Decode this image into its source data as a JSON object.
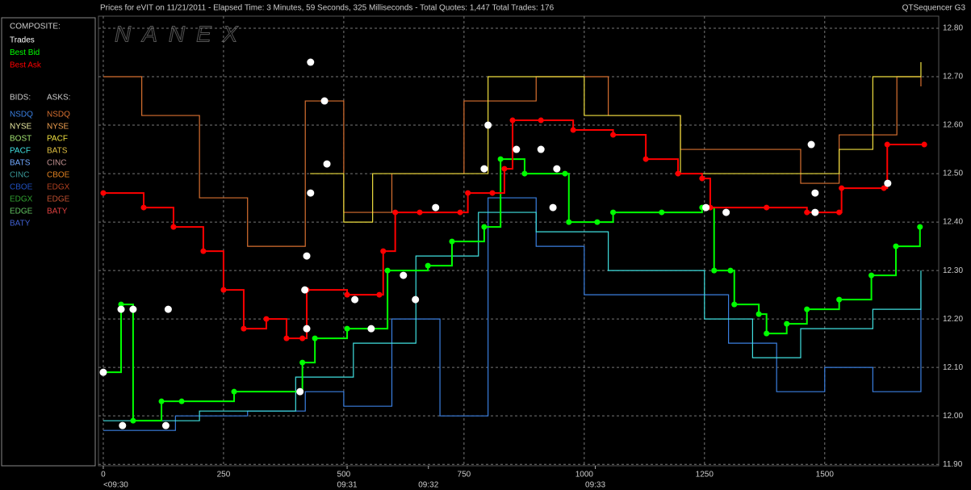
{
  "header": {
    "title": "Prices for  eVIT  on  11/21/2011  -  Elapsed Time: 3 Minutes, 59 Seconds, 325 Milliseconds  -  Total Quotes: 1,447  Total Trades: 176",
    "app": "QTSequencer G3"
  },
  "chart_data": {
    "type": "line",
    "watermark": "NANEX",
    "grid": true,
    "composite_label": "COMPOSITE:",
    "bids_label": "BIDS:",
    "asks_label": "ASKS:",
    "xlim": [
      -10,
      1737
    ],
    "ylim": [
      11.897,
      12.825
    ],
    "xticks": [
      0,
      250,
      500,
      750,
      1000,
      1250,
      1500
    ],
    "x2ticks": [
      {
        "value": 0,
        "label": "<09:30"
      },
      {
        "value": 507,
        "label": "09:31"
      },
      {
        "value": 676,
        "label": "09:32"
      },
      {
        "value": 1023,
        "label": "09:33"
      }
    ],
    "yticks": [
      {
        "value": 11.9,
        "label": "11.90"
      },
      {
        "value": 12.0,
        "label": "12.00"
      },
      {
        "value": 12.1,
        "label": "12.10"
      },
      {
        "value": 12.2,
        "label": "12.20"
      },
      {
        "value": 12.3,
        "label": "12.30"
      },
      {
        "value": 12.4,
        "label": "12.40"
      },
      {
        "value": 12.5,
        "label": "12.50"
      },
      {
        "value": 12.6,
        "label": "12.60"
      },
      {
        "value": 12.7,
        "label": "12.70"
      },
      {
        "value": 12.8,
        "label": "12.80"
      }
    ],
    "series": [
      {
        "name": "Trades",
        "color": "#ffffff",
        "type": "scatter",
        "x": [
          0,
          37,
          62,
          135,
          40,
          130,
          431,
          460,
          465,
          431,
          423,
          419,
          423,
          409,
          523,
          557,
          624,
          649,
          691,
          800,
          792,
          859,
          910,
          943,
          935,
          1253,
          1295,
          1472,
          1480,
          1480,
          1631
        ],
        "values": [
          12.09,
          12.22,
          12.22,
          12.22,
          11.98,
          11.98,
          12.73,
          12.65,
          12.52,
          12.46,
          12.33,
          12.26,
          12.18,
          12.05,
          12.24,
          12.18,
          12.29,
          12.24,
          12.43,
          12.6,
          12.51,
          12.55,
          12.55,
          12.51,
          12.43,
          12.43,
          12.42,
          12.56,
          12.46,
          12.42,
          12.48
        ]
      },
      {
        "name": "Best Bid",
        "color": "#00ff00",
        "type": "step",
        "x": [
          0,
          37,
          62,
          121,
          163,
          272,
          414,
          440,
          507,
          591,
          675,
          725,
          792,
          826,
          876,
          960,
          968,
          1027,
          1060,
          1161,
          1245,
          1270,
          1304,
          1312,
          1363,
          1379,
          1421,
          1463,
          1530,
          1597,
          1648,
          1698
        ],
        "values": [
          12.09,
          12.23,
          11.99,
          12.03,
          12.03,
          12.05,
          12.11,
          12.16,
          12.18,
          12.3,
          12.31,
          12.36,
          12.39,
          12.53,
          12.5,
          12.5,
          12.4,
          12.4,
          12.42,
          12.42,
          12.43,
          12.3,
          12.3,
          12.23,
          12.21,
          12.17,
          12.19,
          12.22,
          12.24,
          12.29,
          12.35,
          12.39
        ]
      },
      {
        "name": "Best Ask",
        "color": "#ff0000",
        "type": "step",
        "x": [
          0,
          84,
          146,
          208,
          250,
          292,
          339,
          381,
          414,
          423,
          507,
          574,
          582,
          607,
          658,
          742,
          758,
          809,
          834,
          851,
          910,
          977,
          1060,
          1128,
          1195,
          1245,
          1262,
          1379,
          1463,
          1530,
          1535,
          1623,
          1630,
          1707
        ],
        "values": [
          12.46,
          12.43,
          12.39,
          12.34,
          12.26,
          12.18,
          12.2,
          12.16,
          12.16,
          12.26,
          12.25,
          12.25,
          12.34,
          12.42,
          12.42,
          12.42,
          12.46,
          12.46,
          12.51,
          12.61,
          12.61,
          12.59,
          12.58,
          12.53,
          12.5,
          12.49,
          12.43,
          12.43,
          12.42,
          12.42,
          12.47,
          12.47,
          12.56,
          12.56
        ]
      }
    ],
    "bids": [
      {
        "name": "NSDQ",
        "color": "#3a7fe0",
        "x": [
          0,
          150,
          300,
          420,
          500,
          600,
          700,
          800,
          900,
          1000,
          1100,
          1300,
          1400,
          1500,
          1600,
          1700
        ],
        "values": [
          11.97,
          12.0,
          12.01,
          12.05,
          12.02,
          12.2,
          12.0,
          12.45,
          12.35,
          12.25,
          12.25,
          12.15,
          12.05,
          12.1,
          12.05,
          12.28
        ]
      },
      {
        "name": "NYSE",
        "color": "#e8e8a0"
      },
      {
        "name": "BOST",
        "color": "#a0e070"
      },
      {
        "name": "PACF",
        "color": "#40e0e0",
        "x": [
          0,
          200,
          400,
          520,
          650,
          780,
          900,
          1050,
          1250,
          1350,
          1450,
          1600,
          1700
        ],
        "values": [
          11.99,
          12.01,
          12.08,
          12.15,
          12.33,
          12.42,
          12.38,
          12.3,
          12.2,
          12.12,
          12.18,
          12.22,
          12.3
        ]
      },
      {
        "name": "BATS",
        "color": "#70a8ff"
      },
      {
        "name": "CINC",
        "color": "#3a9a9a"
      },
      {
        "name": "CBOE",
        "color": "#2050c0"
      },
      {
        "name": "EDGX",
        "color": "#30a030"
      },
      {
        "name": "EDGE",
        "color": "#60c060"
      },
      {
        "name": "BATY",
        "color": "#4060d0"
      }
    ],
    "asks": [
      {
        "name": "NSDQ",
        "color": "#d87030",
        "x": [
          0,
          80,
          200,
          300,
          420,
          500,
          600,
          750,
          900,
          1050,
          1200,
          1300,
          1450,
          1530,
          1650,
          1700
        ],
        "values": [
          12.7,
          12.62,
          12.45,
          12.35,
          12.65,
          12.42,
          12.5,
          12.65,
          12.7,
          12.62,
          12.55,
          12.55,
          12.48,
          12.58,
          12.7,
          12.68
        ]
      },
      {
        "name": "NYSE",
        "color": "#f0a050"
      },
      {
        "name": "PACF",
        "color": "#f0e040",
        "x": [
          430,
          500,
          560,
          800,
          1000,
          1200,
          1530,
          1600,
          1700
        ],
        "values": [
          12.5,
          12.4,
          12.5,
          12.7,
          12.62,
          12.5,
          12.55,
          12.7,
          12.73
        ]
      },
      {
        "name": "BATS",
        "color": "#e0c040"
      },
      {
        "name": "CINC",
        "color": "#c09090"
      },
      {
        "name": "CBOE",
        "color": "#e08020"
      },
      {
        "name": "EDGX",
        "color": "#b04020"
      },
      {
        "name": "EDGE",
        "color": "#c05030"
      },
      {
        "name": "BATY",
        "color": "#e04040"
      }
    ]
  }
}
